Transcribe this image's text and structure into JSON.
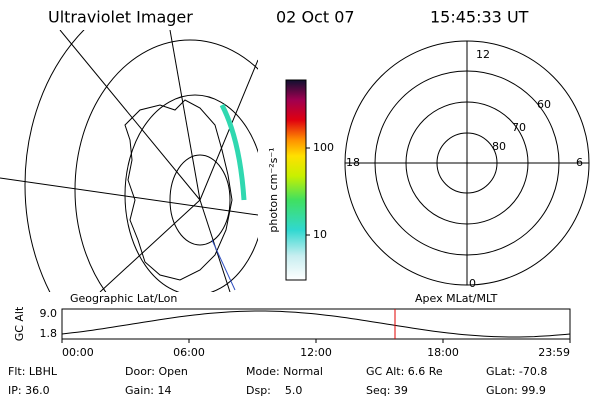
{
  "header": {
    "title": "Ultraviolet Imager",
    "date": "02 Oct 07",
    "time": "15:45:33 UT"
  },
  "left_map": {
    "label": "Geographic Lat/Lon"
  },
  "colorbar": {
    "unit": "photon cm⁻²s⁻¹",
    "ticks": [
      "100",
      "10"
    ]
  },
  "polar_map": {
    "label": "Apex MLat/MLT",
    "mlt_labels": [
      "12",
      "18",
      "6",
      "0"
    ],
    "lat_labels": [
      "60",
      "70",
      "80"
    ]
  },
  "altitude_plot": {
    "ylabel": "GC Alt",
    "yticks": [
      "9.0",
      "1.8"
    ],
    "xticks": [
      "00:00",
      "06:00",
      "12:00",
      "18:00",
      "23:59"
    ]
  },
  "footer": {
    "rows": [
      [
        "Flt: LBHL",
        "Door: Open",
        "Mode: Normal",
        "GC Alt: 6.6 Re",
        "GLat: -70.8"
      ],
      [
        "IP: 36.0",
        "Gain: 14",
        "Dsp:    5.0",
        "Seq: 39",
        "GLon: 99.9"
      ]
    ]
  }
}
